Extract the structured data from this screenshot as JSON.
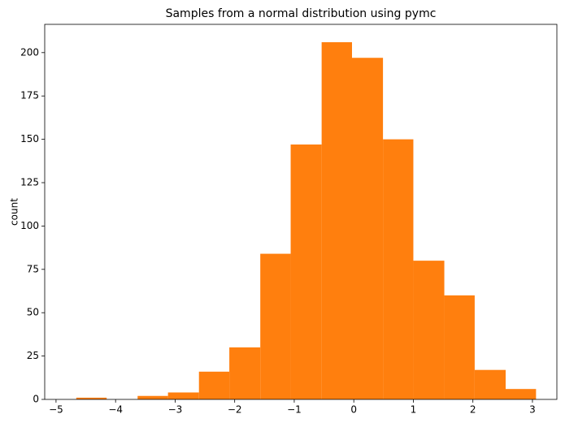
{
  "chart_data": {
    "type": "histogram",
    "title": "Samples from a normal distribution using pymc",
    "y_label": "count",
    "bins": [
      -4.66,
      -4.15,
      -3.63,
      -3.12,
      -2.6,
      -2.09,
      -1.57,
      -1.06,
      -0.54,
      -0.03,
      0.49,
      1.0,
      1.52,
      2.03,
      2.55,
      3.06
    ],
    "values": [
      1,
      0,
      2,
      4,
      16,
      30,
      84,
      147,
      206,
      197,
      150,
      80,
      60,
      17,
      6
    ],
    "color": "#ff7f0e",
    "xlim": [
      -5.19,
      3.41
    ],
    "xticks": [
      {
        "value": -5,
        "label": "−5"
      },
      {
        "value": -4,
        "label": "−4"
      },
      {
        "value": -3,
        "label": "−3"
      },
      {
        "value": -2,
        "label": "−2"
      },
      {
        "value": -1,
        "label": "−1"
      },
      0,
      1,
      2,
      3
    ],
    "ylim": [
      0,
      216.3
    ],
    "yticks": [
      0,
      25,
      50,
      75,
      100,
      125,
      150,
      175,
      200
    ],
    "grid": false
  }
}
